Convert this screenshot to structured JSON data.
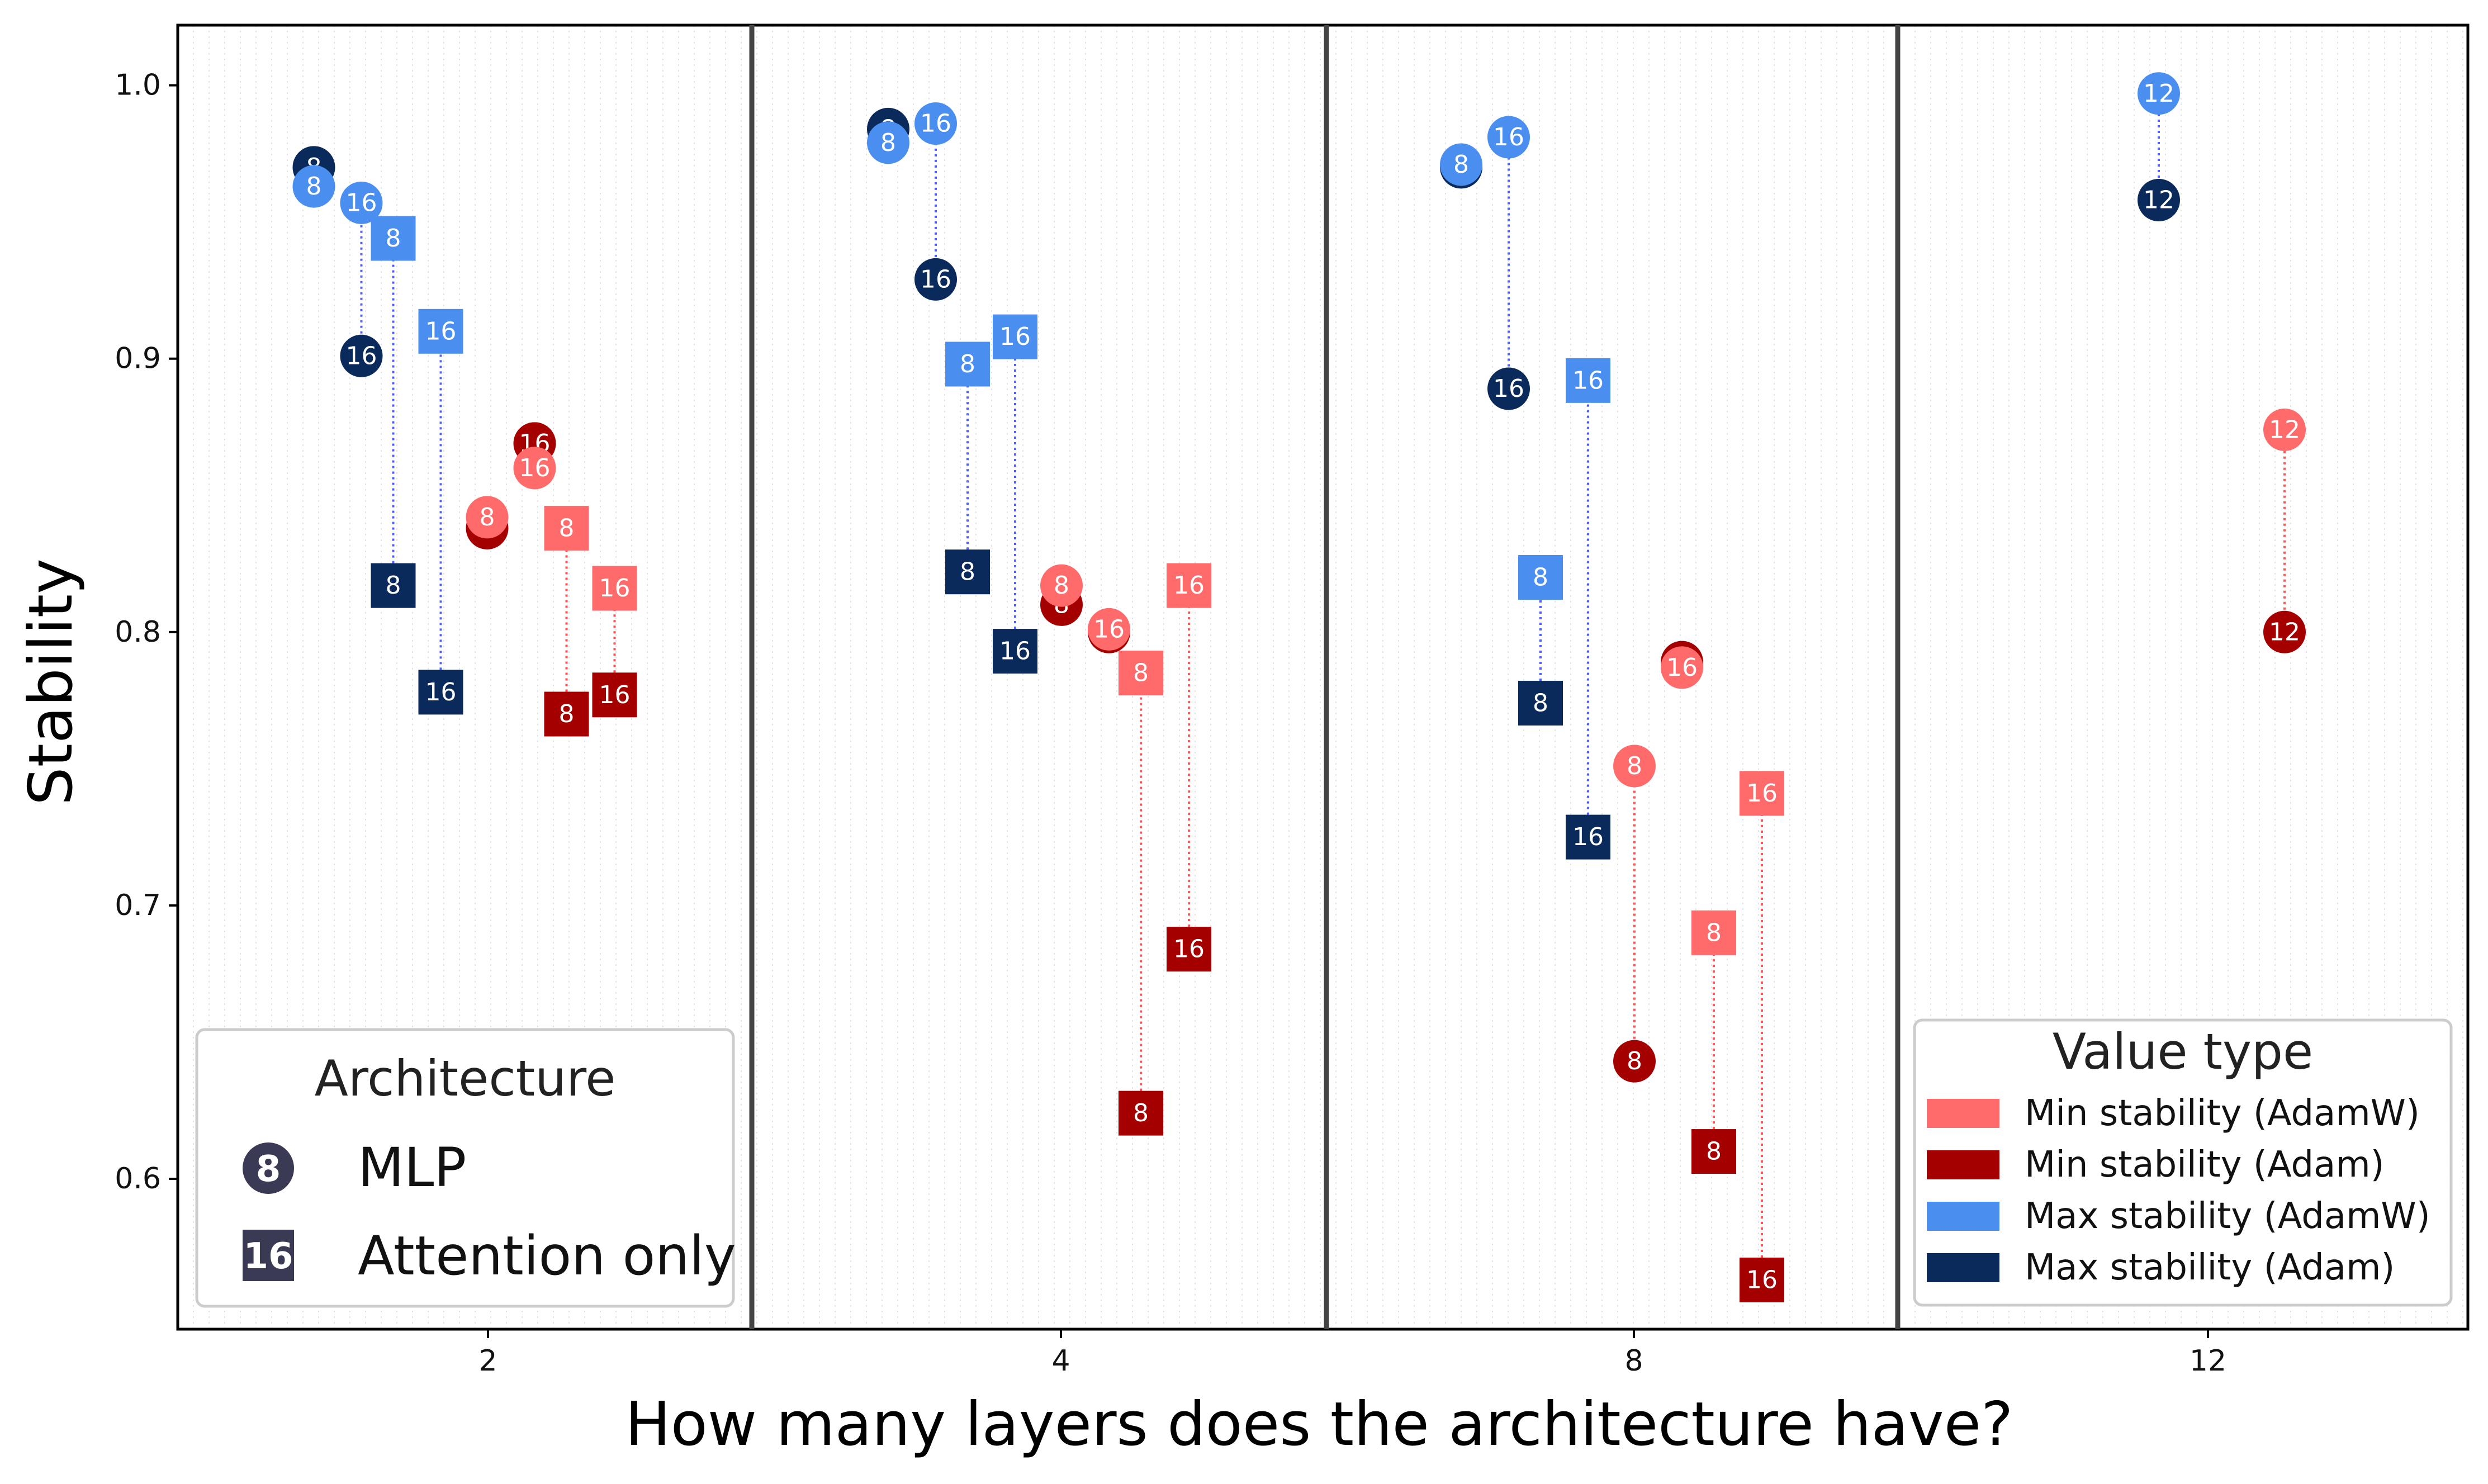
{
  "chart_data": {
    "type": "scatter",
    "xlabel": "How many layers does the architecture have?",
    "ylabel": "Stability",
    "ylim": [
      0.545,
      1.022
    ],
    "yticks": [
      0.6,
      0.7,
      0.8,
      0.9,
      1.0
    ],
    "ytick_labels": [
      "0.6",
      "0.7",
      "0.8",
      "0.9",
      "1.0"
    ],
    "panels": [
      {
        "layers": 2,
        "label": "2"
      },
      {
        "layers": 4,
        "label": "4"
      },
      {
        "layers": 8,
        "label": "8"
      },
      {
        "layers": 12,
        "label": "12"
      }
    ],
    "legend_arch": {
      "title": "Architecture",
      "entries": [
        {
          "shape": "circle",
          "icon_text": "8",
          "label": "MLP"
        },
        {
          "shape": "square",
          "icon_text": "16",
          "label": "Attention only"
        }
      ]
    },
    "legend_value": {
      "title": "Value type",
      "entries": [
        {
          "key": "min_adamw",
          "label": "Min stability (AdamW)",
          "color": "#ff6b6b"
        },
        {
          "key": "min_adam",
          "label": "Min stability (Adam)",
          "color": "#a40000"
        },
        {
          "key": "max_adamw",
          "label": "Max stability  (AdamW)",
          "color": "#4a8ff0"
        },
        {
          "key": "max_adam",
          "label": "Max stability (Adam)",
          "color": "#0b2a5c"
        }
      ]
    },
    "colors": {
      "min_adamw": "#ff6b6b",
      "min_adam": "#a40000",
      "max_adamw": "#4a8ff0",
      "max_adam": "#0b2a5c",
      "min_link": "#ff5555",
      "max_link": "#5060ff"
    },
    "groups": [
      {
        "panel": 0,
        "slot": 0,
        "shape": "circle",
        "value_type": "max",
        "points": [
          {
            "width": "8",
            "adam": 0.97,
            "adamw": 0.963
          }
        ]
      },
      {
        "panel": 0,
        "slot": 1,
        "shape": "circle",
        "value_type": "max",
        "points": [
          {
            "width": "16",
            "adam": 0.901,
            "adamw": 0.957
          }
        ]
      },
      {
        "panel": 0,
        "slot": 2,
        "shape": "square",
        "value_type": "max",
        "points": [
          {
            "width": "8",
            "adam": 0.817,
            "adamw": 0.944
          }
        ]
      },
      {
        "panel": 0,
        "slot": 3,
        "shape": "square",
        "value_type": "max",
        "points": [
          {
            "width": "16",
            "adam": 0.778,
            "adamw": 0.91
          }
        ]
      },
      {
        "panel": 0,
        "slot": 4,
        "shape": "circle",
        "value_type": "min",
        "points": [
          {
            "width": "8",
            "adam": 0.838,
            "adamw": 0.842
          }
        ]
      },
      {
        "panel": 0,
        "slot": 5,
        "shape": "circle",
        "value_type": "min",
        "points": [
          {
            "width": "16",
            "adam": 0.869,
            "adamw": 0.86
          }
        ]
      },
      {
        "panel": 0,
        "slot": 6,
        "shape": "square",
        "value_type": "min",
        "points": [
          {
            "width": "8",
            "adam": 0.77,
            "adamw": 0.838
          }
        ]
      },
      {
        "panel": 0,
        "slot": 7,
        "shape": "square",
        "value_type": "min",
        "points": [
          {
            "width": "16",
            "adam": 0.777,
            "adamw": 0.816
          }
        ]
      },
      {
        "panel": 1,
        "slot": 0,
        "shape": "circle",
        "value_type": "max",
        "points": [
          {
            "width": "8",
            "adam": 0.984,
            "adamw": 0.979
          }
        ]
      },
      {
        "panel": 1,
        "slot": 1,
        "shape": "circle",
        "value_type": "max",
        "points": [
          {
            "width": "16",
            "adam": 0.929,
            "adamw": 0.986
          }
        ]
      },
      {
        "panel": 1,
        "slot": 2,
        "shape": "square",
        "value_type": "max",
        "points": [
          {
            "width": "8",
            "adam": 0.822,
            "adamw": 0.898
          }
        ]
      },
      {
        "panel": 1,
        "slot": 3,
        "shape": "square",
        "value_type": "max",
        "points": [
          {
            "width": "16",
            "adam": 0.793,
            "adamw": 0.908
          }
        ]
      },
      {
        "panel": 1,
        "slot": 4,
        "shape": "circle",
        "value_type": "min",
        "points": [
          {
            "width": "8",
            "adam": 0.81,
            "adamw": 0.817
          }
        ]
      },
      {
        "panel": 1,
        "slot": 5,
        "shape": "circle",
        "value_type": "min",
        "points": [
          {
            "width": "16",
            "adam": 0.8,
            "adamw": 0.801
          }
        ]
      },
      {
        "panel": 1,
        "slot": 6,
        "shape": "square",
        "value_type": "min",
        "points": [
          {
            "width": "8",
            "adam": 0.624,
            "adamw": 0.785
          }
        ]
      },
      {
        "panel": 1,
        "slot": 7,
        "shape": "square",
        "value_type": "min",
        "points": [
          {
            "width": "16",
            "adam": 0.684,
            "adamw": 0.817
          }
        ]
      },
      {
        "panel": 2,
        "slot": 0,
        "shape": "circle",
        "value_type": "max",
        "points": [
          {
            "width": "8",
            "adam": 0.97,
            "adamw": 0.971
          }
        ]
      },
      {
        "panel": 2,
        "slot": 1,
        "shape": "circle",
        "value_type": "max",
        "points": [
          {
            "width": "16",
            "adam": 0.889,
            "adamw": 0.981
          }
        ]
      },
      {
        "panel": 2,
        "slot": 2,
        "shape": "square",
        "value_type": "max",
        "points": [
          {
            "width": "8",
            "adam": 0.774,
            "adamw": 0.82
          }
        ]
      },
      {
        "panel": 2,
        "slot": 3,
        "shape": "square",
        "value_type": "max",
        "points": [
          {
            "width": "16",
            "adam": 0.725,
            "adamw": 0.892
          }
        ]
      },
      {
        "panel": 2,
        "slot": 4,
        "shape": "circle",
        "value_type": "min",
        "points": [
          {
            "width": "8",
            "adam": 0.643,
            "adamw": 0.751
          }
        ]
      },
      {
        "panel": 2,
        "slot": 5,
        "shape": "circle",
        "value_type": "min",
        "points": [
          {
            "width": "16",
            "adam": 0.789,
            "adamw": 0.787
          }
        ]
      },
      {
        "panel": 2,
        "slot": 6,
        "shape": "square",
        "value_type": "min",
        "points": [
          {
            "width": "8",
            "adam": 0.61,
            "adamw": 0.69
          }
        ]
      },
      {
        "panel": 2,
        "slot": 7,
        "shape": "square",
        "value_type": "min",
        "points": [
          {
            "width": "16",
            "adam": 0.563,
            "adamw": 0.741
          }
        ]
      },
      {
        "panel": 3,
        "slot": 3,
        "shape": "circle",
        "value_type": "max",
        "points": [
          {
            "width": "12",
            "adam": 0.958,
            "adamw": 0.997
          }
        ]
      },
      {
        "panel": 3,
        "slot": 6,
        "shape": "circle",
        "value_type": "min",
        "points": [
          {
            "width": "12",
            "adam": 0.8,
            "adamw": 0.874
          }
        ]
      }
    ]
  }
}
